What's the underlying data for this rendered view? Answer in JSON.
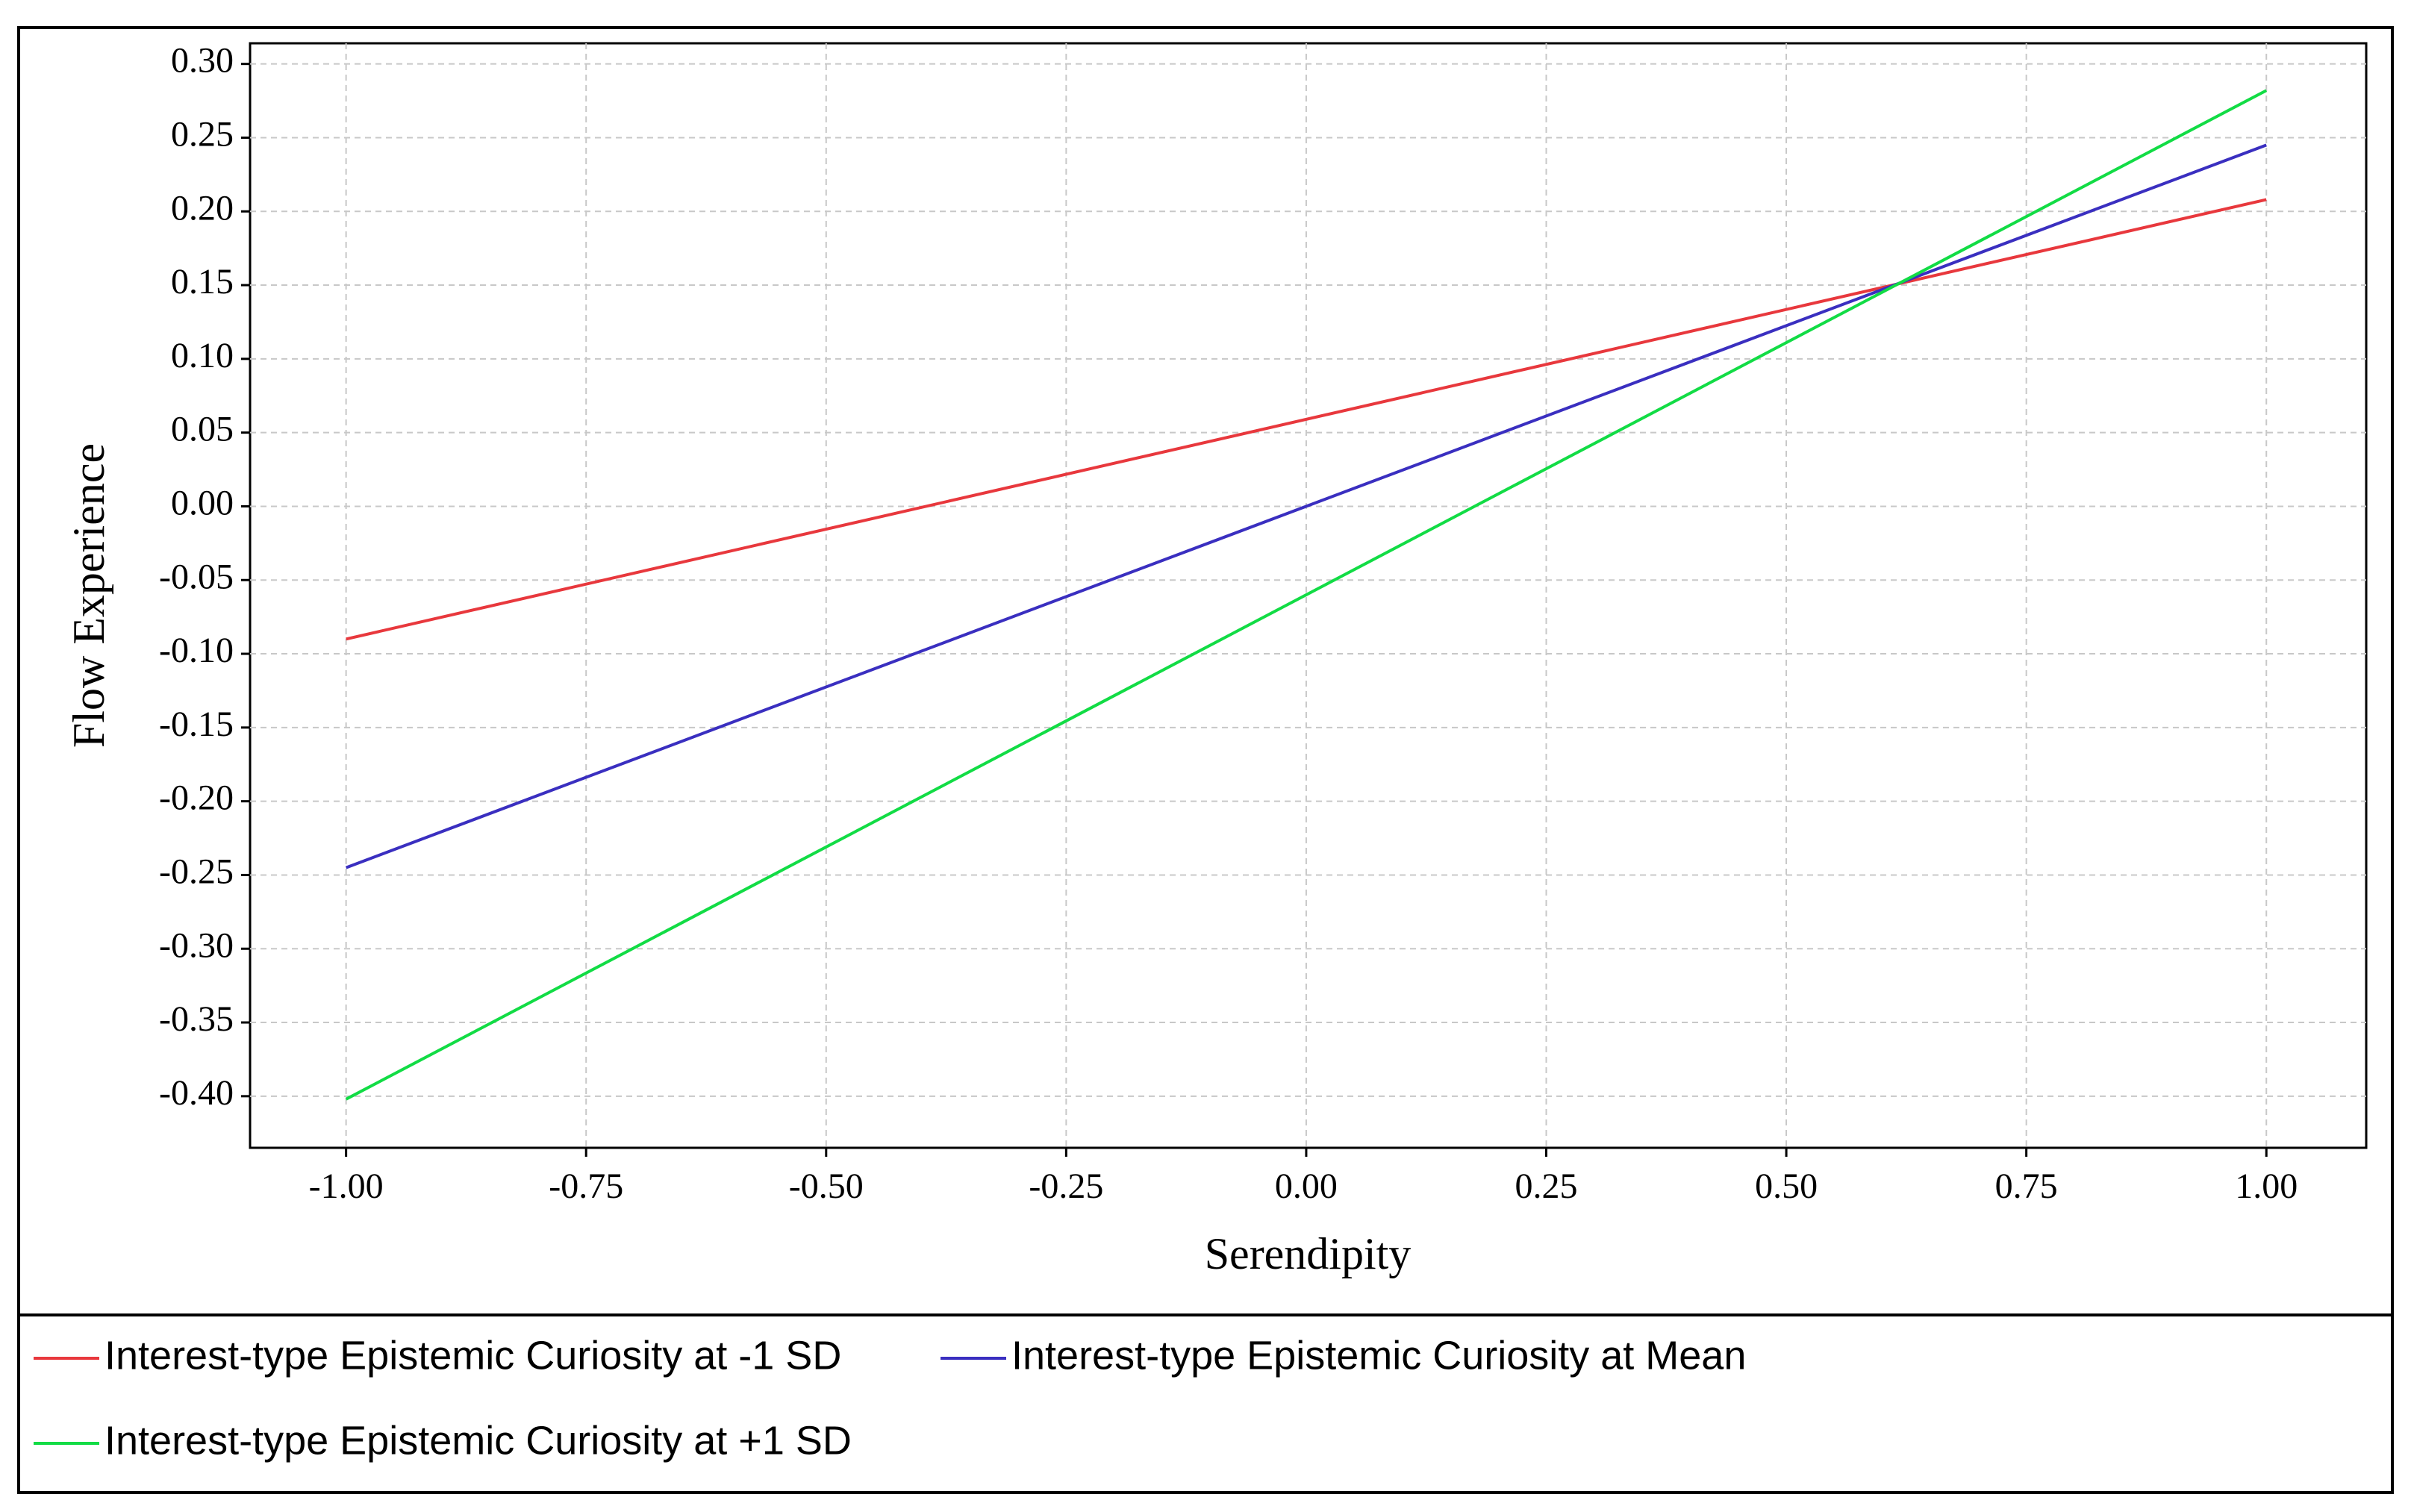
{
  "chart_data": {
    "type": "line",
    "x_label": "Serendipity",
    "y_label": "Flow Experience",
    "x": [
      -1,
      1
    ],
    "series": [
      {
        "name": "Interest-type Epistemic Curiosity at -1 SD",
        "color": "#e8383d",
        "values": [
          -0.09,
          0.208
        ]
      },
      {
        "name": "Interest-type Epistemic Curiosity at Mean",
        "color": "#3a2fc0",
        "values": [
          -0.245,
          0.245
        ]
      },
      {
        "name": "Interest-type Epistemic Curiosity at +1 SD",
        "color": "#12dc45",
        "values": [
          -0.402,
          0.282
        ]
      }
    ],
    "xlim": [
      -1.1,
      1.104
    ],
    "ylim": [
      -0.435,
      0.314
    ],
    "xticks": [
      {
        "value": -1,
        "label": "-1.00"
      },
      {
        "value": -0.75,
        "label": "-0.75"
      },
      {
        "value": -0.5,
        "label": "-0.50"
      },
      {
        "value": -0.25,
        "label": "-0.25"
      },
      {
        "value": 0,
        "label": "0.00"
      },
      {
        "value": 0.25,
        "label": "0.25"
      },
      {
        "value": 0.5,
        "label": "0.50"
      },
      {
        "value": 0.75,
        "label": "0.75"
      },
      {
        "value": 1,
        "label": "1.00"
      }
    ],
    "yticks": [
      {
        "value": 0.3,
        "label": "0.30"
      },
      {
        "value": 0.25,
        "label": "0.25"
      },
      {
        "value": 0.2,
        "label": "0.20"
      },
      {
        "value": 0.15,
        "label": "0.15"
      },
      {
        "value": 0.1,
        "label": "0.10"
      },
      {
        "value": 0.05,
        "label": "0.05"
      },
      {
        "value": 0,
        "label": "0.00"
      },
      {
        "value": -0.05,
        "label": "-0.05"
      },
      {
        "value": -0.1,
        "label": "-0.10"
      },
      {
        "value": -0.15,
        "label": "-0.15"
      },
      {
        "value": -0.2,
        "label": "-0.20"
      },
      {
        "value": -0.25,
        "label": "-0.25"
      },
      {
        "value": -0.3,
        "label": "-0.30"
      },
      {
        "value": -0.35,
        "label": "-0.35"
      },
      {
        "value": -0.4,
        "label": "-0.40"
      }
    ],
    "grid": true
  }
}
